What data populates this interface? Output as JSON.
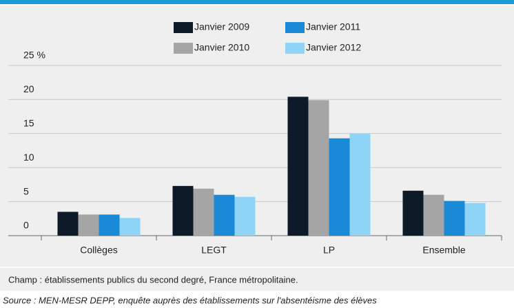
{
  "chart_data": {
    "type": "bar",
    "categories": [
      "Collèges",
      "LEGT",
      "LP",
      "Ensemble"
    ],
    "series": [
      {
        "name": "Janvier 2009",
        "color": "#0e1a28",
        "values": [
          3.5,
          7.3,
          20.4,
          6.6
        ]
      },
      {
        "name": "Janvier 2010",
        "color": "#a5a5a5",
        "values": [
          3.1,
          6.9,
          19.9,
          6.0
        ]
      },
      {
        "name": "Janvier 2011",
        "color": "#1a8ad6",
        "values": [
          3.1,
          6.0,
          14.3,
          5.1
        ]
      },
      {
        "name": "Janvier 2012",
        "color": "#8ed4f6",
        "values": [
          2.6,
          5.7,
          15.0,
          4.8
        ]
      }
    ],
    "ylim": [
      0,
      25
    ],
    "yticks": [
      0,
      5,
      10,
      15,
      20,
      {
        "value": 25,
        "label": "25 %"
      }
    ],
    "grid": true,
    "legend": "top",
    "note": "Champ : établissements publics du second degré, France métropolitaine.",
    "source": "Source : MEN-MESR DEPP, enquête auprès des établissements sur l'absentéisme des élèves"
  }
}
